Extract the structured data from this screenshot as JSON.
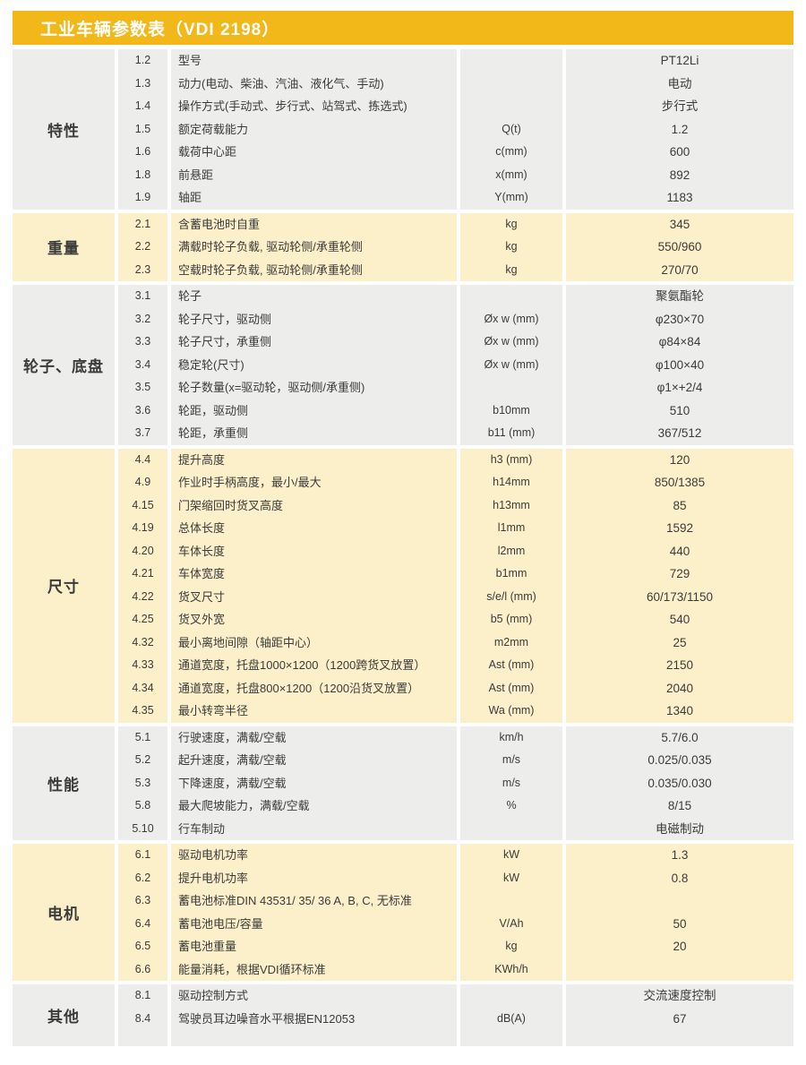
{
  "title": "工业车辆参数表（VDI 2198）",
  "colors": {
    "header_yellow": "#F2B718",
    "row_gray": "#EDEDEC",
    "row_cream": "#FCF0CB",
    "text": "#3b3b39",
    "title_text": "#ffffff"
  },
  "sections": [
    {
      "label": "特性",
      "tone": "gray",
      "rows": [
        {
          "no": "1.2",
          "desc": "型号",
          "unit": "",
          "value": "PT12Li"
        },
        {
          "no": "1.3",
          "desc": "动力(电动、柴油、汽油、液化气、手动)",
          "unit": "",
          "value": "电动"
        },
        {
          "no": "1.4",
          "desc": "操作方式(手动式、步行式、站驾式、拣选式)",
          "unit": "",
          "value": "步行式"
        },
        {
          "no": "1.5",
          "desc": "额定荷载能力",
          "unit": "Q(t)",
          "value": "1.2"
        },
        {
          "no": "1.6",
          "desc": "载荷中心距",
          "unit": "c(mm)",
          "value": "600"
        },
        {
          "no": "1.8",
          "desc": "前悬距",
          "unit": "x(mm)",
          "value": "892"
        },
        {
          "no": "1.9",
          "desc": "轴距",
          "unit": "Y(mm)",
          "value": "1183"
        }
      ]
    },
    {
      "label": "重量",
      "tone": "cream",
      "rows": [
        {
          "no": "2.1",
          "desc": "含蓄电池时自重",
          "unit": "kg",
          "value": "345"
        },
        {
          "no": "2.2",
          "desc": "满载时轮子负载, 驱动轮侧/承重轮侧",
          "unit": "kg",
          "value": "550/960"
        },
        {
          "no": "2.3",
          "desc": "空载时轮子负载, 驱动轮侧/承重轮侧",
          "unit": "kg",
          "value": "270/70"
        }
      ]
    },
    {
      "label": "轮子、底盘",
      "tone": "gray",
      "rows": [
        {
          "no": "3.1",
          "desc": "轮子",
          "unit": "",
          "value": "聚氨酯轮"
        },
        {
          "no": "3.2",
          "desc": "轮子尺寸，驱动侧",
          "unit": "Øx w (mm)",
          "value": "φ230×70"
        },
        {
          "no": "3.3",
          "desc": "轮子尺寸，承重侧",
          "unit": "Øx w (mm)",
          "value": "φ84×84"
        },
        {
          "no": "3.4",
          "desc": "稳定轮(尺寸)",
          "unit": "Øx w (mm)",
          "value": "φ100×40"
        },
        {
          "no": "3.5",
          "desc": "轮子数量(x=驱动轮，驱动侧/承重侧)",
          "unit": "",
          "value": "φ1×+2/4"
        },
        {
          "no": "3.6",
          "desc": "轮距，驱动侧",
          "unit": "b10mm",
          "value": "510"
        },
        {
          "no": "3.7",
          "desc": "轮距，承重侧",
          "unit": "b11 (mm)",
          "value": "367/512"
        }
      ]
    },
    {
      "label": "尺寸",
      "tone": "cream",
      "rows": [
        {
          "no": "4.4",
          "desc": "提升高度",
          "unit": "h3 (mm)",
          "value": "120"
        },
        {
          "no": "4.9",
          "desc": "作业时手柄高度，最小/最大",
          "unit": "h14mm",
          "value": "850/1385"
        },
        {
          "no": "4.15",
          "desc": "门架缩回时货叉高度",
          "unit": "h13mm",
          "value": "85"
        },
        {
          "no": "4.19",
          "desc": "总体长度",
          "unit": "l1mm",
          "value": "1592"
        },
        {
          "no": "4.20",
          "desc": "车体长度",
          "unit": "l2mm",
          "value": "440"
        },
        {
          "no": "4.21",
          "desc": "车体宽度",
          "unit": "b1mm",
          "value": "729"
        },
        {
          "no": "4.22",
          "desc": "货叉尺寸",
          "unit": "s/e/l (mm)",
          "value": "60/173/1150"
        },
        {
          "no": "4.25",
          "desc": "货叉外宽",
          "unit": "b5 (mm)",
          "value": "540"
        },
        {
          "no": "4.32",
          "desc": "最小离地间隙（轴距中心）",
          "unit": "m2mm",
          "value": "25"
        },
        {
          "no": "4.33",
          "desc": "通道宽度，托盘1000×1200（1200跨货叉放置）",
          "unit": "Ast (mm)",
          "value": "2150"
        },
        {
          "no": "4.34",
          "desc": "通道宽度，托盘800×1200（1200沿货叉放置）",
          "unit": "Ast (mm)",
          "value": "2040"
        },
        {
          "no": "4.35",
          "desc": "最小转弯半径",
          "unit": "Wa (mm)",
          "value": "1340"
        }
      ]
    },
    {
      "label": "性能",
      "tone": "gray",
      "rows": [
        {
          "no": "5.1",
          "desc": "行驶速度，满载/空载",
          "unit": "km/h",
          "value": "5.7/6.0"
        },
        {
          "no": "5.2",
          "desc": "起升速度，满载/空载",
          "unit": "m/s",
          "value": "0.025/0.035"
        },
        {
          "no": "5.3",
          "desc": "下降速度，满载/空载",
          "unit": "m/s",
          "value": "0.035/0.030"
        },
        {
          "no": "5.8",
          "desc": "最大爬坡能力，满载/空载",
          "unit": "%",
          "value": "8/15"
        },
        {
          "no": "5.10",
          "desc": "行车制动",
          "unit": "",
          "value": "电磁制动"
        }
      ]
    },
    {
      "label": "电机",
      "tone": "cream",
      "rows": [
        {
          "no": "6.1",
          "desc": "驱动电机功率",
          "unit": "kW",
          "value": "1.3"
        },
        {
          "no": "6.2",
          "desc": "提升电机功率",
          "unit": "kW",
          "value": "0.8"
        },
        {
          "no": "6.3",
          "desc": "蓄电池标准DIN 43531/ 35/ 36 A, B, C, 无标准",
          "unit": "",
          "value": ""
        },
        {
          "no": "6.4",
          "desc": "蓄电池电压/容量",
          "unit": "V/Ah",
          "value": "50"
        },
        {
          "no": "6.5",
          "desc": "蓄电池重量",
          "unit": "kg",
          "value": "20"
        },
        {
          "no": "6.6",
          "desc": "能量消耗，根据VDI循环标准",
          "unit": "KWh/h",
          "value": ""
        }
      ]
    },
    {
      "label": "其他",
      "tone": "gray",
      "pad_bottom": true,
      "rows": [
        {
          "no": "8.1",
          "desc": "驱动控制方式",
          "unit": "",
          "value": "交流速度控制"
        },
        {
          "no": "8.4",
          "desc": "驾驶员耳边噪音水平根据EN12053",
          "unit": "dB(A)",
          "value": "67"
        }
      ]
    }
  ]
}
